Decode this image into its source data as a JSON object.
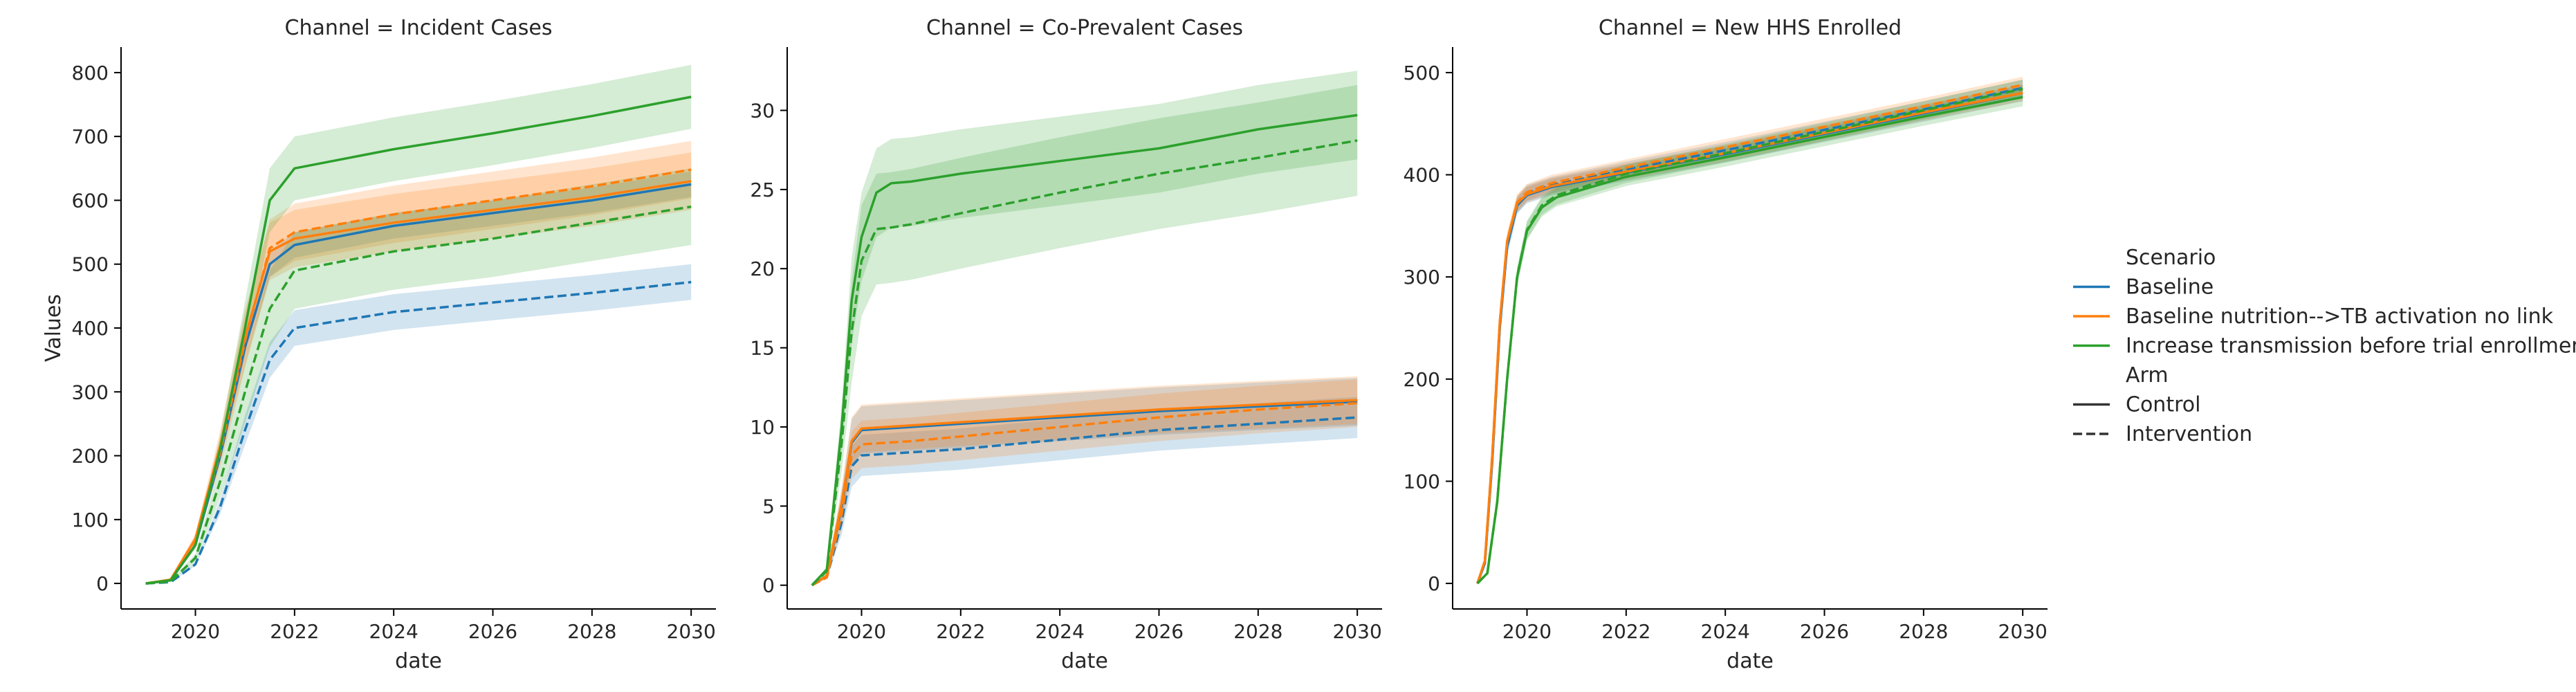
{
  "chart_data": {
    "type": "line",
    "x_unit": "date (year)",
    "ylabel": "Values",
    "xlabel": "date",
    "legend": {
      "placement": "right",
      "hue_title": "Scenario",
      "style_title": "Arm",
      "scenarios": [
        {
          "name": "Baseline",
          "color": "#1f77b4"
        },
        {
          "name": "Baseline nutrition-->TB activation no link",
          "color": "#ff7f0e"
        },
        {
          "name": "Increase transmission before trial enrollment",
          "color": "#2ca02c"
        }
      ],
      "arms": [
        {
          "name": "Control",
          "dash": "solid"
        },
        {
          "name": "Intervention",
          "dash": "dashed"
        }
      ]
    },
    "panels": [
      {
        "title": "Channel = Incident Cases",
        "xlim": [
          2018.5,
          2030.5
        ],
        "ylim": [
          -40,
          840
        ],
        "xticks": [
          2020,
          2022,
          2024,
          2026,
          2028,
          2030
        ],
        "yticks": [
          0,
          100,
          200,
          300,
          400,
          500,
          600,
          700,
          800
        ],
        "ytick_labels": [
          "0",
          "100",
          "200",
          "300",
          "400",
          "500",
          "600",
          "700",
          "800"
        ],
        "show_ylabel": true,
        "series": [
          {
            "scenario": "Baseline",
            "arm": "Intervention",
            "band": 28,
            "x": [
              2019.0,
              2019.5,
              2020.0,
              2020.5,
              2021.0,
              2021.5,
              2022.0,
              2024.0,
              2026.0,
              2028.0,
              2030.0
            ],
            "y": [
              0,
              2,
              30,
              120,
              240,
              350,
              400,
              425,
              440,
              455,
              472
            ]
          },
          {
            "scenario": "Baseline",
            "arm": "Control",
            "band": 20,
            "x": [
              2019.0,
              2019.5,
              2020.0,
              2020.5,
              2021.0,
              2021.5,
              2022.0,
              2024.0,
              2026.0,
              2028.0,
              2030.0
            ],
            "y": [
              0,
              5,
              60,
              200,
              370,
              500,
              530,
              560,
              580,
              600,
              625
            ]
          },
          {
            "scenario": "Baseline nutrition-->TB activation no link",
            "arm": "Control",
            "band": 45,
            "x": [
              2019.0,
              2019.5,
              2020.0,
              2020.5,
              2021.0,
              2021.5,
              2022.0,
              2024.0,
              2026.0,
              2028.0,
              2030.0
            ],
            "y": [
              0,
              6,
              70,
              215,
              385,
              520,
              540,
              565,
              585,
              605,
              630
            ]
          },
          {
            "scenario": "Baseline nutrition-->TB activation no link",
            "arm": "Intervention",
            "band": 45,
            "x": [
              2019.0,
              2019.5,
              2020.0,
              2020.5,
              2021.0,
              2021.5,
              2022.0,
              2024.0,
              2026.0,
              2028.0,
              2030.0
            ],
            "y": [
              0,
              5,
              65,
              205,
              380,
              525,
              550,
              578,
              600,
              622,
              648
            ]
          },
          {
            "scenario": "Increase transmission before trial enrollment",
            "arm": "Control",
            "band": 50,
            "x": [
              2019.0,
              2019.5,
              2020.0,
              2020.5,
              2021.0,
              2021.5,
              2022.0,
              2024.0,
              2026.0,
              2028.0,
              2030.0
            ],
            "y": [
              0,
              5,
              60,
              210,
              400,
              600,
              650,
              680,
              705,
              732,
              762
            ]
          },
          {
            "scenario": "Increase transmission before trial enrollment",
            "arm": "Intervention",
            "band": 60,
            "x": [
              2019.0,
              2019.5,
              2020.0,
              2020.5,
              2021.0,
              2021.5,
              2022.0,
              2024.0,
              2026.0,
              2028.0,
              2030.0
            ],
            "y": [
              0,
              3,
              40,
              160,
              300,
              430,
              490,
              520,
              540,
              565,
              590
            ]
          }
        ]
      },
      {
        "title": "Channel = Co-Prevalent Cases",
        "xlim": [
          2018.5,
          2030.5
        ],
        "ylim": [
          -1.5,
          34
        ],
        "xticks": [
          2020,
          2022,
          2024,
          2026,
          2028,
          2030
        ],
        "yticks": [
          0,
          5,
          10,
          15,
          20,
          25,
          30
        ],
        "ytick_labels": [
          "0",
          "5",
          "10",
          "15",
          "20",
          "25",
          "30"
        ],
        "show_ylabel": false,
        "series": [
          {
            "scenario": "Baseline",
            "arm": "Intervention",
            "band": 1.3,
            "x": [
              2019.0,
              2019.3,
              2019.6,
              2019.8,
              2020.0,
              2020.5,
              2021.0,
              2022.0,
              2024.0,
              2026.0,
              2028.0,
              2030.0
            ],
            "y": [
              0,
              0.5,
              4.0,
              7.5,
              8.2,
              8.3,
              8.4,
              8.6,
              9.2,
              9.8,
              10.2,
              10.6
            ]
          },
          {
            "scenario": "Baseline",
            "arm": "Control",
            "band": 1.5,
            "x": [
              2019.0,
              2019.3,
              2019.6,
              2019.8,
              2020.0,
              2020.5,
              2021.0,
              2022.0,
              2024.0,
              2026.0,
              2028.0,
              2030.0
            ],
            "y": [
              0,
              0.6,
              5.0,
              9.0,
              9.8,
              9.9,
              10.0,
              10.2,
              10.6,
              11.0,
              11.3,
              11.6
            ]
          },
          {
            "scenario": "Baseline nutrition-->TB activation no link",
            "arm": "Control",
            "band": 1.5,
            "x": [
              2019.0,
              2019.3,
              2019.6,
              2019.8,
              2020.0,
              2020.5,
              2021.0,
              2022.0,
              2024.0,
              2026.0,
              2028.0,
              2030.0
            ],
            "y": [
              0,
              0.6,
              5.2,
              9.1,
              9.9,
              10.0,
              10.1,
              10.3,
              10.7,
              11.1,
              11.4,
              11.7
            ]
          },
          {
            "scenario": "Baseline nutrition-->TB activation no link",
            "arm": "Intervention",
            "band": 1.5,
            "x": [
              2019.0,
              2019.3,
              2019.6,
              2019.8,
              2020.0,
              2020.5,
              2021.0,
              2022.0,
              2024.0,
              2026.0,
              2028.0,
              2030.0
            ],
            "y": [
              0,
              0.5,
              4.5,
              8.2,
              8.9,
              9.0,
              9.1,
              9.4,
              10.0,
              10.6,
              11.1,
              11.5
            ]
          },
          {
            "scenario": "Increase transmission before trial enrollment",
            "arm": "Control",
            "band": 2.8,
            "x": [
              2019.0,
              2019.3,
              2019.6,
              2019.8,
              2020.0,
              2020.3,
              2020.6,
              2021.0,
              2022.0,
              2024.0,
              2026.0,
              2028.0,
              2030.0
            ],
            "y": [
              0,
              1.0,
              10.0,
              18.0,
              22.0,
              24.8,
              25.4,
              25.5,
              26.0,
              26.8,
              27.6,
              28.8,
              29.7
            ]
          },
          {
            "scenario": "Increase transmission before trial enrollment",
            "arm": "Intervention",
            "band": 3.5,
            "x": [
              2019.0,
              2019.3,
              2019.6,
              2019.8,
              2020.0,
              2020.3,
              2020.6,
              2021.0,
              2022.0,
              2024.0,
              2026.0,
              2028.0,
              2030.0
            ],
            "y": [
              0,
              0.9,
              9.0,
              16.0,
              20.5,
              22.5,
              22.6,
              22.8,
              23.5,
              24.8,
              26.0,
              27.0,
              28.1
            ]
          }
        ]
      },
      {
        "title": "Channel = New HHS Enrolled",
        "xlim": [
          2018.5,
          2030.5
        ],
        "ylim": [
          -25,
          525
        ],
        "xticks": [
          2020,
          2022,
          2024,
          2026,
          2028,
          2030
        ],
        "yticks": [
          0,
          100,
          200,
          300,
          400,
          500
        ],
        "ytick_labels": [
          "0",
          "100",
          "200",
          "300",
          "400",
          "500"
        ],
        "show_ylabel": false,
        "series": [
          {
            "scenario": "Baseline",
            "arm": "Control",
            "band": 8,
            "x": [
              2019.0,
              2019.15,
              2019.3,
              2019.45,
              2019.6,
              2019.8,
              2020.0,
              2020.5,
              2022.0,
              2024.0,
              2026.0,
              2028.0,
              2030.0
            ],
            "y": [
              0,
              20,
              120,
              250,
              330,
              370,
              380,
              388,
              402,
              420,
              440,
              460,
              480
            ]
          },
          {
            "scenario": "Baseline",
            "arm": "Intervention",
            "band": 8,
            "x": [
              2019.0,
              2019.15,
              2019.3,
              2019.45,
              2019.6,
              2019.8,
              2020.0,
              2020.5,
              2022.0,
              2024.0,
              2026.0,
              2028.0,
              2030.0
            ],
            "y": [
              0,
              20,
              120,
              250,
              330,
              370,
              382,
              390,
              405,
              424,
              444,
              464,
              485
            ]
          },
          {
            "scenario": "Baseline nutrition-->TB activation no link",
            "arm": "Control",
            "band": 8,
            "x": [
              2019.0,
              2019.15,
              2019.3,
              2019.45,
              2019.6,
              2019.8,
              2020.0,
              2020.5,
              2022.0,
              2024.0,
              2026.0,
              2028.0,
              2030.0
            ],
            "y": [
              0,
              22,
              125,
              255,
              335,
              372,
              381,
              389,
              403,
              421,
              441,
              461,
              480
            ]
          },
          {
            "scenario": "Baseline nutrition-->TB activation no link",
            "arm": "Intervention",
            "band": 8,
            "x": [
              2019.0,
              2019.15,
              2019.3,
              2019.45,
              2019.6,
              2019.8,
              2020.0,
              2020.5,
              2022.0,
              2024.0,
              2026.0,
              2028.0,
              2030.0
            ],
            "y": [
              0,
              22,
              125,
              255,
              335,
              373,
              383,
              392,
              407,
              427,
              447,
              467,
              488
            ]
          },
          {
            "scenario": "Increase transmission before trial enrollment",
            "arm": "Control",
            "band": 9,
            "x": [
              2019.0,
              2019.2,
              2019.4,
              2019.6,
              2019.8,
              2020.0,
              2020.3,
              2020.6,
              2022.0,
              2024.0,
              2026.0,
              2028.0,
              2030.0
            ],
            "y": [
              0,
              10,
              80,
              200,
              300,
              345,
              368,
              378,
              398,
              417,
              437,
              457,
              476
            ]
          },
          {
            "scenario": "Increase transmission before trial enrollment",
            "arm": "Intervention",
            "band": 9,
            "x": [
              2019.0,
              2019.2,
              2019.4,
              2019.6,
              2019.8,
              2020.0,
              2020.3,
              2020.6,
              2022.0,
              2024.0,
              2026.0,
              2028.0,
              2030.0
            ],
            "y": [
              0,
              10,
              80,
              200,
              300,
              346,
              370,
              380,
              401,
              421,
              442,
              463,
              484
            ]
          }
        ]
      }
    ]
  }
}
